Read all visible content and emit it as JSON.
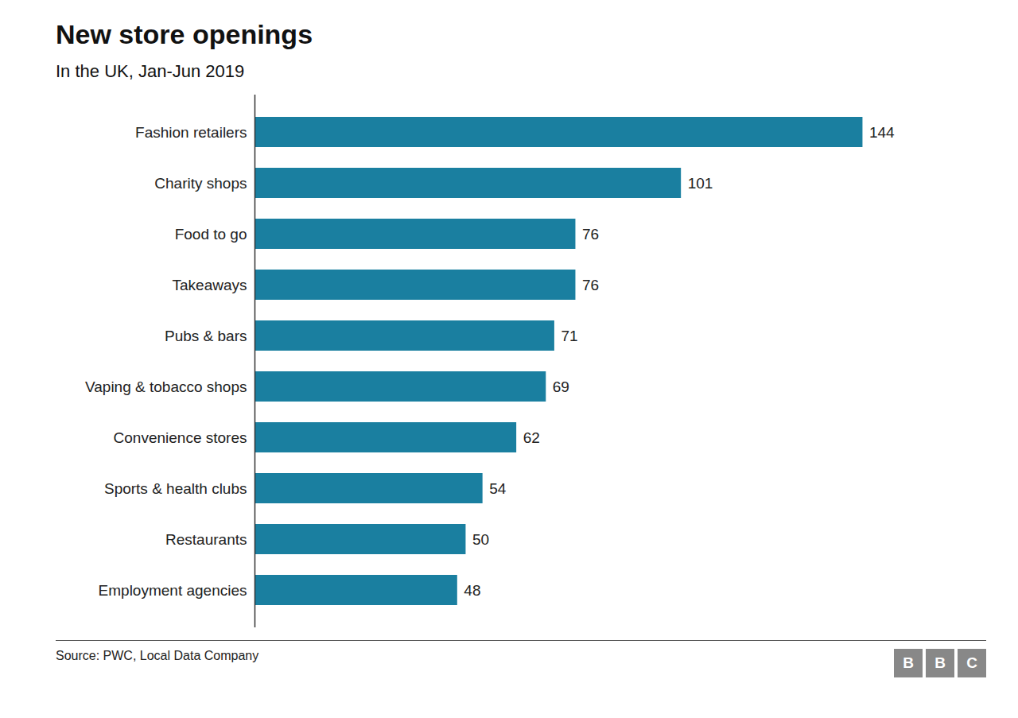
{
  "chart_data": {
    "type": "bar",
    "orientation": "horizontal",
    "title": "New store openings",
    "subtitle": "In the UK, Jan-Jun 2019",
    "source": "Source: PWC, Local Data Company",
    "logo_letters": [
      "B",
      "B",
      "C"
    ],
    "categories": [
      "Employment agencies",
      "Restaurants",
      "Sports & health clubs",
      "Convenience stores",
      "Vaping & tobacco shops",
      "Pubs & bars",
      "Takeaways",
      "Food to go",
      "Charity shops",
      "Fashion retailers"
    ],
    "values": [
      48,
      50,
      54,
      62,
      69,
      71,
      76,
      76,
      101,
      144
    ],
    "color": "#1a7fa0",
    "xlim": [
      0,
      162
    ],
    "data_labels": true,
    "tick_labels": "y",
    "grid": false
  }
}
